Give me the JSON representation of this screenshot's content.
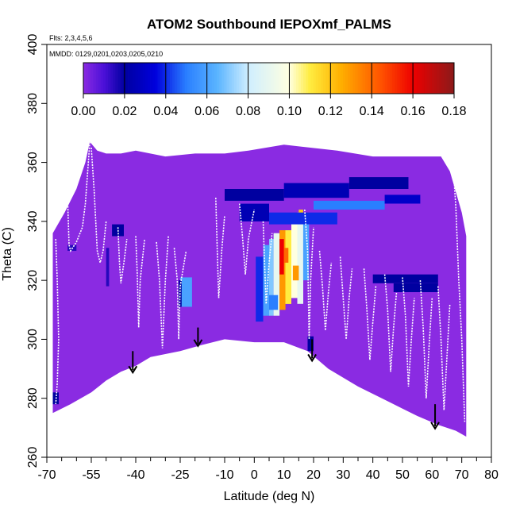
{
  "chart_data": {
    "type": "heatmap",
    "title": "ATOM2 Southbound IEPOXmf_PALMS",
    "subtitle_flights": "Flts: 2,3,4,5,6",
    "subtitle_dates": "MMDD: 0129,0201,0203,0205,0210",
    "xlabel": "Latitude (deg N)",
    "ylabel": "Theta (C)",
    "xlim": [
      -70,
      80
    ],
    "ylim": [
      260,
      400
    ],
    "x_ticks": [
      -70,
      -55,
      -40,
      -25,
      -10,
      0,
      10,
      20,
      30,
      40,
      50,
      60,
      70,
      80
    ],
    "x_minor_ticks": [
      -65,
      -60,
      -50,
      -45,
      -35,
      -30,
      -20,
      -15,
      -5,
      5,
      15,
      25,
      35,
      45,
      55,
      65,
      75
    ],
    "y_ticks": [
      260,
      280,
      300,
      320,
      340,
      360,
      380,
      400
    ],
    "colorbar": {
      "ticks": [
        0.0,
        0.02,
        0.04,
        0.06,
        0.08,
        0.1,
        0.12,
        0.14,
        0.16,
        0.18
      ],
      "tick_labels": [
        "0.00",
        "0.02",
        "0.04",
        "0.06",
        "0.08",
        "0.10",
        "0.12",
        "0.14",
        "0.16",
        "0.18"
      ],
      "range": [
        0.0,
        0.18
      ],
      "stops": [
        {
          "v": 0.0,
          "color": "#8a2be2"
        },
        {
          "v": 0.01,
          "color": "#4b10d8"
        },
        {
          "v": 0.02,
          "color": "#0000a0"
        },
        {
          "v": 0.035,
          "color": "#0000dd"
        },
        {
          "v": 0.05,
          "color": "#2a7fff"
        },
        {
          "v": 0.065,
          "color": "#5ab4ff"
        },
        {
          "v": 0.08,
          "color": "#cfeeff"
        },
        {
          "v": 0.1,
          "color": "#ffffe0"
        },
        {
          "v": 0.11,
          "color": "#ffec40"
        },
        {
          "v": 0.125,
          "color": "#ffb000"
        },
        {
          "v": 0.145,
          "color": "#ff5000"
        },
        {
          "v": 0.16,
          "color": "#ee0000"
        },
        {
          "v": 0.18,
          "color": "#8b1a1a"
        }
      ]
    },
    "domain_boundary": {
      "upper": [
        [
          -68,
          336
        ],
        [
          -64,
          343
        ],
        [
          -60,
          351
        ],
        [
          -57,
          360
        ],
        [
          -55.5,
          367
        ],
        [
          -53,
          364
        ],
        [
          -50,
          363
        ],
        [
          -45,
          363
        ],
        [
          -40,
          364
        ],
        [
          -30,
          362
        ],
        [
          -20,
          363
        ],
        [
          -10,
          363
        ],
        [
          -2,
          364
        ],
        [
          10,
          366
        ],
        [
          28,
          364
        ],
        [
          40,
          362
        ],
        [
          50,
          362
        ],
        [
          60,
          362
        ],
        [
          63,
          362
        ],
        [
          66,
          357
        ],
        [
          70,
          343
        ],
        [
          71.5,
          335
        ]
      ],
      "lower": [
        [
          -68,
          275
        ],
        [
          -62,
          278
        ],
        [
          -55,
          282
        ],
        [
          -50,
          286
        ],
        [
          -45,
          289
        ],
        [
          -40,
          291
        ],
        [
          -35,
          294
        ],
        [
          -30,
          295
        ],
        [
          -25,
          296
        ],
        [
          -18,
          298
        ],
        [
          -10,
          300
        ],
        [
          0,
          299
        ],
        [
          10,
          299
        ],
        [
          18,
          296
        ],
        [
          25,
          290
        ],
        [
          35,
          284
        ],
        [
          45,
          279
        ],
        [
          55,
          274
        ],
        [
          62,
          271
        ],
        [
          68,
          269
        ],
        [
          71.5,
          267
        ]
      ]
    },
    "anomalies": [
      {
        "lat": [
          0.5,
          3
        ],
        "theta": [
          306,
          328
        ],
        "value": 0.04
      },
      {
        "lat": [
          3,
          5
        ],
        "theta": [
          308,
          332
        ],
        "value": 0.06
      },
      {
        "lat": [
          5,
          6.5
        ],
        "theta": [
          308,
          334
        ],
        "value": 0.07
      },
      {
        "lat": [
          6.5,
          8.5
        ],
        "theta": [
          308,
          336
        ],
        "value": 0.09
      },
      {
        "lat": [
          8.5,
          10.5
        ],
        "theta": [
          310,
          337
        ],
        "value": 0.13
      },
      {
        "lat": [
          10.5,
          12.5
        ],
        "theta": [
          312,
          337
        ],
        "value": 0.11
      },
      {
        "lat": [
          12.5,
          14.5
        ],
        "theta": [
          314,
          341
        ],
        "value": 0.1
      },
      {
        "lat": [
          14.5,
          16.5
        ],
        "theta": [
          312,
          343
        ],
        "value": 0.09
      },
      {
        "lat": [
          16.5,
          18.5
        ],
        "theta": [
          320,
          342
        ],
        "value": 0.06
      },
      {
        "lat": [
          8.5,
          10
        ],
        "theta": [
          322,
          334
        ],
        "value": 0.16
      },
      {
        "lat": [
          10,
          11.5
        ],
        "theta": [
          326,
          331
        ],
        "value": 0.14
      },
      {
        "lat": [
          13,
          15
        ],
        "theta": [
          320,
          325
        ],
        "value": 0.13
      },
      {
        "lat": [
          15,
          16.5
        ],
        "theta": [
          340,
          344
        ],
        "value": 0.12
      },
      {
        "lat": [
          5,
          8
        ],
        "theta": [
          310,
          315
        ],
        "value": 0.05
      },
      {
        "lat": [
          -25,
          -21
        ],
        "theta": [
          311,
          321
        ],
        "value": 0.06
      },
      {
        "lat": [
          -25.5,
          -24.5
        ],
        "theta": [
          311,
          320
        ],
        "value": 0.02
      },
      {
        "lat": [
          -10,
          10
        ],
        "theta": [
          347,
          351
        ],
        "value": 0.02
      },
      {
        "lat": [
          10,
          32
        ],
        "theta": [
          348,
          353
        ],
        "value": 0.025
      },
      {
        "lat": [
          32,
          52
        ],
        "theta": [
          351,
          355
        ],
        "value": 0.02
      },
      {
        "lat": [
          20,
          44
        ],
        "theta": [
          344,
          347
        ],
        "value": 0.05
      },
      {
        "lat": [
          44,
          56
        ],
        "theta": [
          346,
          349
        ],
        "value": 0.03
      },
      {
        "lat": [
          5,
          28
        ],
        "theta": [
          339,
          343
        ],
        "value": 0.04
      },
      {
        "lat": [
          -5,
          5
        ],
        "theta": [
          340,
          346
        ],
        "value": 0.025
      },
      {
        "lat": [
          40,
          62
        ],
        "theta": [
          319,
          322
        ],
        "value": 0.02
      },
      {
        "lat": [
          47,
          62
        ],
        "theta": [
          316,
          319
        ],
        "value": 0.02
      },
      {
        "lat": [
          -48,
          -44
        ],
        "theta": [
          335,
          339
        ],
        "value": 0.02
      },
      {
        "lat": [
          -68,
          -66
        ],
        "theta": [
          278,
          282
        ],
        "value": 0.02
      },
      {
        "lat": [
          -50,
          -49
        ],
        "theta": [
          318,
          331
        ],
        "value": 0.015
      },
      {
        "lat": [
          -63,
          -60
        ],
        "theta": [
          330,
          332
        ],
        "value": 0.015
      },
      {
        "lat": [
          18,
          20
        ],
        "theta": [
          296,
          301
        ],
        "value": 0.02
      }
    ],
    "arrows": [
      {
        "lat": -41,
        "theta_top": 296,
        "theta_bottom": 289
      },
      {
        "lat": -19,
        "theta_top": 304,
        "theta_bottom": 298
      },
      {
        "lat": 19.5,
        "theta_top": 300,
        "theta_bottom": 293
      },
      {
        "lat": 61,
        "theta_top": 278,
        "theta_bottom": 270
      }
    ]
  }
}
